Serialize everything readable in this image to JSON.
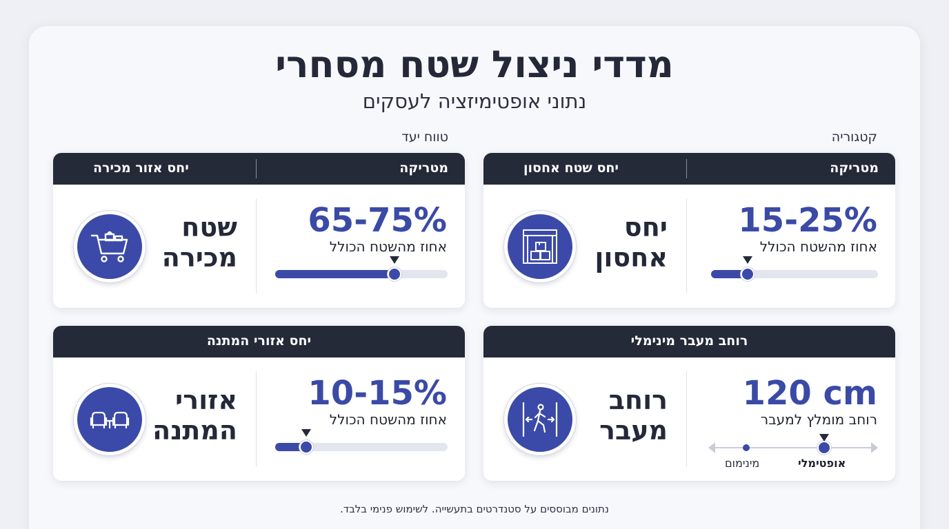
{
  "title": "מדדי ניצול שטח מסחרי",
  "subtitle": "נתוני אופטימיזציה לעסקים",
  "column_labels": {
    "right": "קטגוריה",
    "left": "טווח יעד"
  },
  "cards": {
    "storage": {
      "head_right": "מטריקה",
      "head_left": "יחס שטח אחסון",
      "value": "15-25%",
      "caption": "אחוז מהשטח הכולל",
      "label_line1": "יחס",
      "label_line2": "אחסון",
      "icon": "storage-boxes-icon",
      "fill_percent": 22
    },
    "sales": {
      "head_right": "מטריקה",
      "head_left": "יחס אזור מכירה",
      "value": "65-75%",
      "caption": "אחוז מהשטח הכולל",
      "label_line1": "שטח",
      "label_line2": "מכירה",
      "icon": "shopping-cart-icon",
      "fill_percent": 69
    },
    "aisle": {
      "head": "רוחב מעבר מינימלי",
      "value": "120 cm",
      "caption": "רוחב מומלץ למעבר",
      "label_line1": "רוחב",
      "label_line2": "מעבר",
      "icon": "walking-person-icon",
      "range_min_label": "מינימום",
      "range_opt_label": "אופטימלי"
    },
    "waiting": {
      "head": "יחס אזורי המתנה",
      "value": "10-15%",
      "caption": "אחוז מהשטח הכולל",
      "label_line1": "אזורי",
      "label_line2": "המתנה",
      "icon": "armchairs-icon",
      "fill_percent": 18
    }
  },
  "footnote": "נתונים מבוססים על סטנדרטים בתעשייה. לשימוש פנימי בלבד.",
  "colors": {
    "accent": "#3b4aa8",
    "header": "#242a38",
    "value": "#3a4aa6"
  }
}
